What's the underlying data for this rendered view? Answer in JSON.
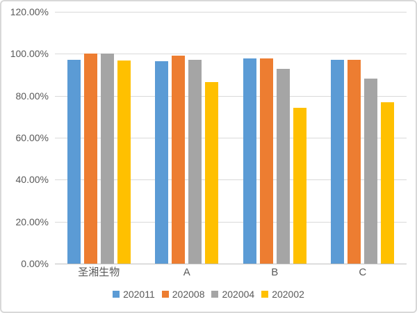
{
  "chart_data": {
    "type": "bar",
    "title": "",
    "xlabel": "",
    "ylabel": "",
    "categories": [
      "圣湘生物",
      "A",
      "B",
      "C"
    ],
    "series": [
      {
        "name": "202011",
        "color": "#5B9BD5",
        "values": [
          97.2,
          96.4,
          97.9,
          97.0
        ]
      },
      {
        "name": "202008",
        "color": "#ED7D31",
        "values": [
          100.0,
          99.1,
          97.9,
          97.0
        ]
      },
      {
        "name": "202004",
        "color": "#A5A5A5",
        "values": [
          100.0,
          97.2,
          92.8,
          88.3
        ]
      },
      {
        "name": "202002",
        "color": "#FFC000",
        "values": [
          96.9,
          86.6,
          74.2,
          76.9
        ]
      }
    ],
    "ylim": [
      0,
      120
    ],
    "ytick_step": 20,
    "ytick_labels": [
      "0.00%",
      "20.00%",
      "40.00%",
      "60.00%",
      "80.00%",
      "100.00%",
      "120.00%"
    ],
    "grid": true,
    "legend_position": "bottom-center"
  },
  "colors": {
    "text": "#595959",
    "gridline": "#D9D9D9",
    "axis_line": "#BFBFBF",
    "border": "#D8D8D8",
    "background": "#FFFFFF"
  }
}
